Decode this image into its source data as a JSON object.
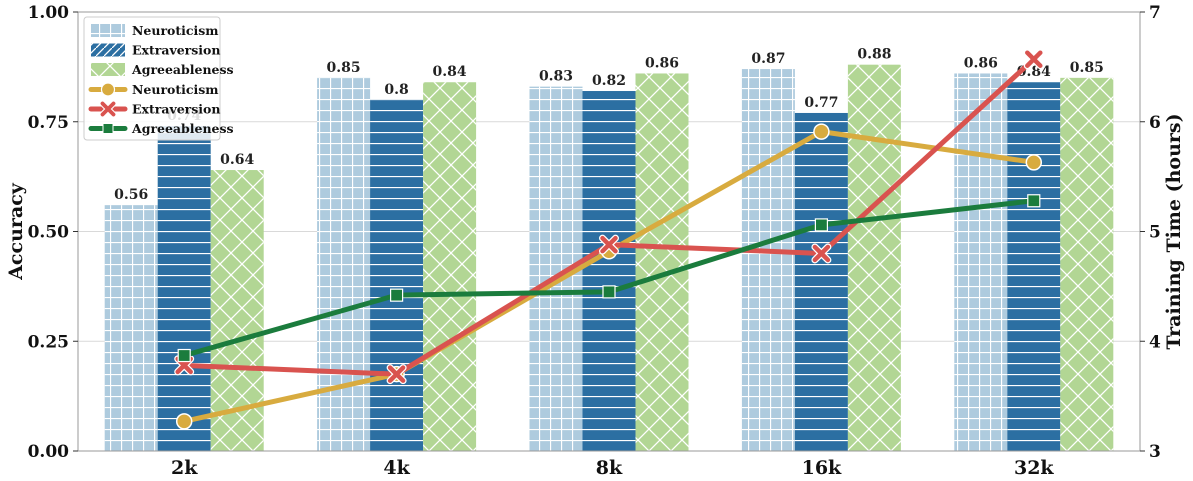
{
  "chart_data": {
    "type": "bar",
    "categories": [
      "2k",
      "4k",
      "8k",
      "16k",
      "32k"
    ],
    "ylabel": "Accuracy",
    "y2label": "Training Time (hours)",
    "ylim": [
      0.0,
      1.0
    ],
    "y2lim": [
      3,
      7
    ],
    "yticks": [
      "0.00",
      "0.25",
      "0.50",
      "0.75",
      "1.00"
    ],
    "y2ticks": [
      "3",
      "4",
      "5",
      "6",
      "7"
    ],
    "grid": "horizontal",
    "legend_position": "top-left",
    "bar_series": [
      {
        "name": "Neuroticism",
        "values": [
          0.56,
          0.85,
          0.83,
          0.87,
          0.86
        ],
        "labels": [
          "0.56",
          "0.85",
          "0.83",
          "0.87",
          "0.86"
        ],
        "color": "#aecbde"
      },
      {
        "name": "Extraversion",
        "values": [
          0.74,
          0.8,
          0.82,
          0.77,
          0.84
        ],
        "labels": [
          "0.74",
          "0.8",
          "0.82",
          "0.77",
          "0.84"
        ],
        "color": "#2c6fa2"
      },
      {
        "name": "Agreeableness",
        "values": [
          0.64,
          0.84,
          0.86,
          0.88,
          0.85
        ],
        "labels": [
          "0.64",
          "0.84",
          "0.86",
          "0.88",
          "0.85"
        ],
        "color": "#b2d694"
      }
    ],
    "line_series": [
      {
        "name": "Neuroticism",
        "axis": "right",
        "values": [
          3.27,
          3.7,
          4.82,
          5.91,
          5.63
        ],
        "color": "#d8ab3f",
        "marker": "circle"
      },
      {
        "name": "Extraversion",
        "axis": "right",
        "values": [
          3.78,
          3.7,
          4.88,
          4.8,
          6.57
        ],
        "color": "#d9534f",
        "marker": "x"
      },
      {
        "name": "Agreeableness",
        "axis": "right",
        "values": [
          3.87,
          4.42,
          4.45,
          5.06,
          5.28
        ],
        "color": "#1b7c3d",
        "marker": "square"
      }
    ]
  }
}
